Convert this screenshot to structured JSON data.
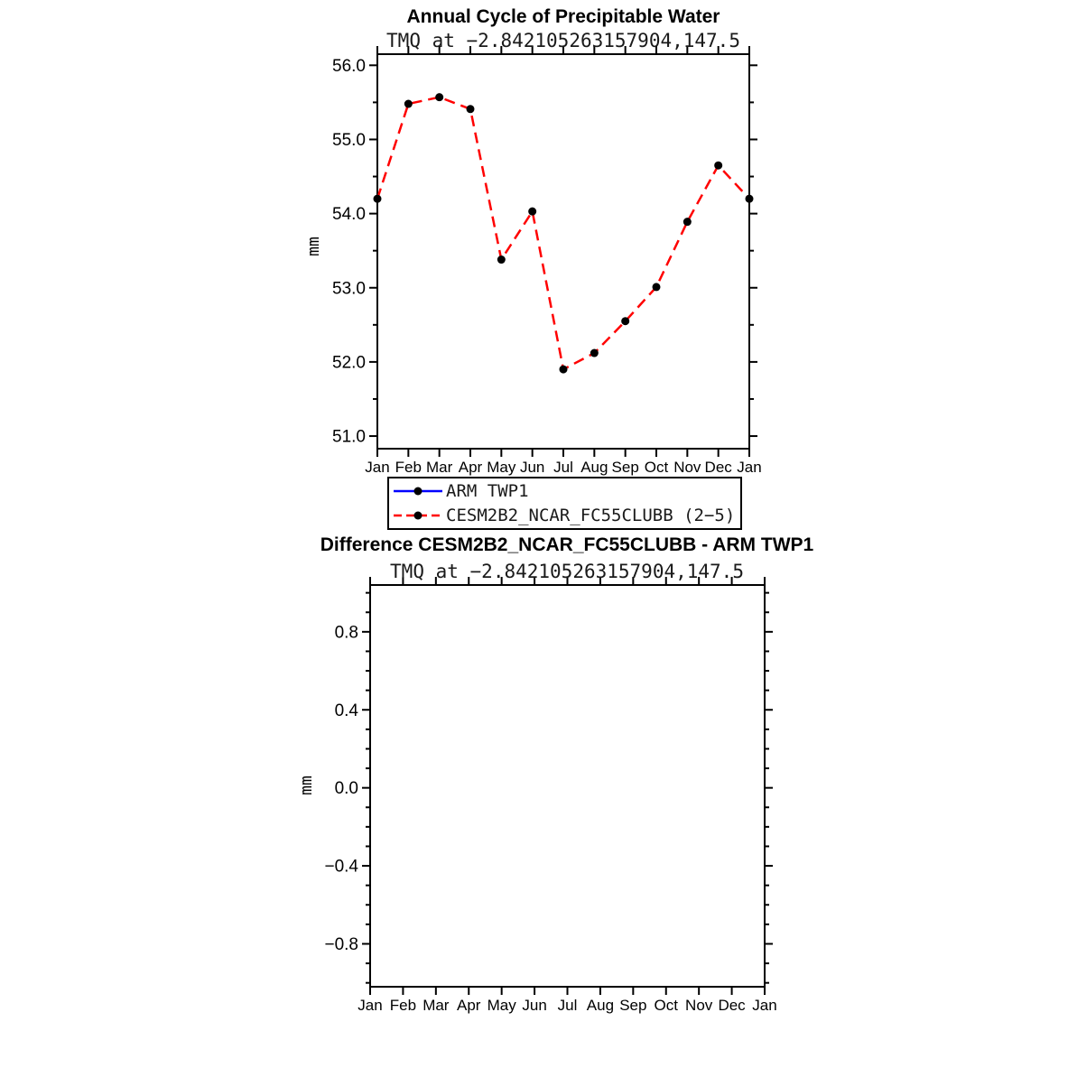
{
  "chart_data": [
    {
      "type": "line",
      "title": "Annual Cycle of Precipitable Water",
      "subtitle": "TMQ at −2.842105263157904,147.5",
      "xlabel": "",
      "ylabel": "mm",
      "categories": [
        "Jan",
        "Feb",
        "Mar",
        "Apr",
        "May",
        "Jun",
        "Jul",
        "Aug",
        "Sep",
        "Oct",
        "Nov",
        "Dec",
        "Jan"
      ],
      "ylim": [
        50.83,
        56.15
      ],
      "yticks": [
        51.0,
        52.0,
        53.0,
        54.0,
        55.0,
        56.0
      ],
      "ytick_labels": [
        "51.0",
        "52.0",
        "53.0",
        "54.0",
        "55.0",
        "56.0"
      ],
      "minor_tick_step": 0.5,
      "grid": false,
      "legend_position": "below",
      "series": [
        {
          "name": "ARM TWP1",
          "color": "#0000ff",
          "dash": "solid",
          "marker": "circle",
          "marker_color": "#000000",
          "values": []
        },
        {
          "name": "CESM2B2_NCAR_FC55CLUBB (2−5)",
          "color": "#ff0000",
          "dash": "dashed",
          "marker": "circle",
          "marker_color": "#000000",
          "values": [
            54.2,
            55.48,
            55.57,
            55.41,
            53.38,
            54.03,
            51.9,
            52.12,
            52.55,
            53.01,
            53.89,
            54.65,
            54.2
          ]
        }
      ]
    },
    {
      "type": "line",
      "title": "Difference CESM2B2_NCAR_FC55CLUBB - ARM TWP1",
      "subtitle": "TMQ at −2.842105263157904,147.5",
      "xlabel": "",
      "ylabel": "mm",
      "categories": [
        "Jan",
        "Feb",
        "Mar",
        "Apr",
        "May",
        "Jun",
        "Jul",
        "Aug",
        "Sep",
        "Oct",
        "Nov",
        "Dec",
        "Jan"
      ],
      "ylim": [
        -1.02,
        1.04
      ],
      "yticks": [
        -0.8,
        -0.4,
        0.0,
        0.4,
        0.8
      ],
      "ytick_labels": [
        "−0.8",
        "−0.4",
        "0.0",
        "0.4",
        "0.8"
      ],
      "minor_tick_step": 0.1,
      "grid": false,
      "legend_position": "none",
      "series": []
    }
  ],
  "colors": {
    "axis": "#000000",
    "background": "#ffffff",
    "series_blue": "#0000ff",
    "series_red": "#ff0000",
    "marker": "#000000"
  }
}
